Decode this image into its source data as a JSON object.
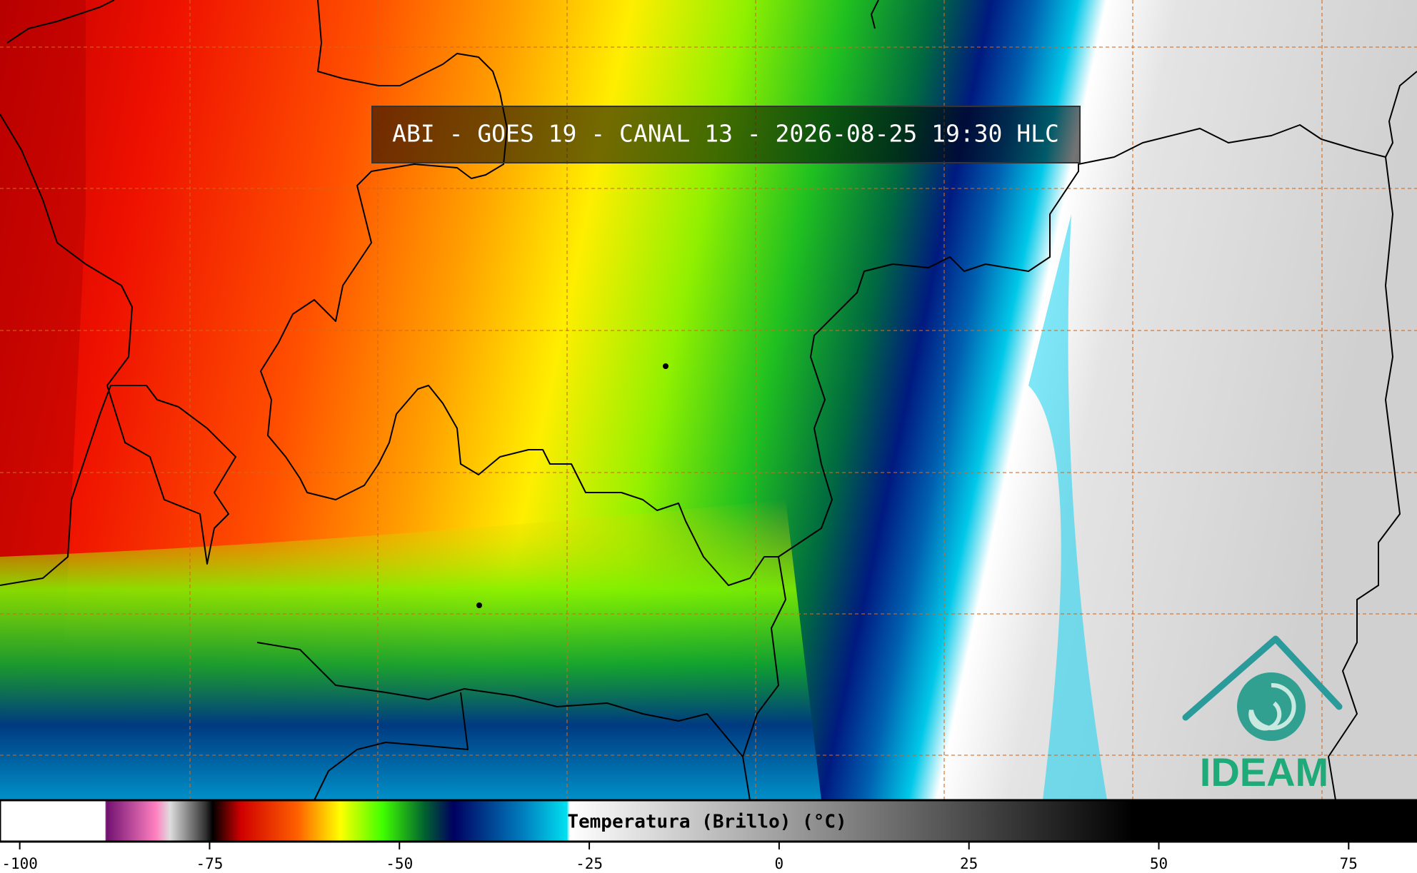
{
  "title": "ABI - GOES 19 - CANAL 13 - 2026-08-25 19:30 HLC",
  "colorbar": {
    "label": "Temperatura (Brillo) (°C)",
    "range": [
      -102.6,
      84
    ],
    "ticks": [
      -100,
      -75,
      -50,
      -25,
      0,
      25,
      50,
      75
    ]
  },
  "logo": {
    "text": "IDEAM"
  }
}
